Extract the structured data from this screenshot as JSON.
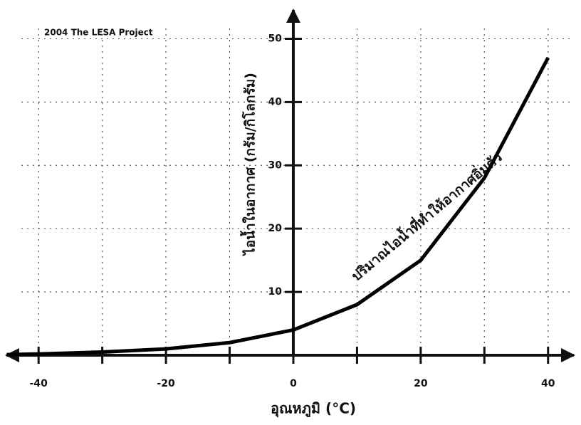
{
  "chart_data": {
    "type": "line",
    "copyright": "2004  The LESA Project",
    "y_label": "ไอน้ำในอากาศ (กรัม/กิโลกรัม)",
    "x_label": "อุณหภูมิ (°C)",
    "curve_label": "ปริมาณไอน้ำที่ทำให้อากาศอิ่มตัว",
    "x": [
      -45,
      -40,
      -30,
      -20,
      -10,
      0,
      10,
      20,
      30,
      40
    ],
    "series": [
      {
        "name": "ปริมาณไอน้ำที่ทำให้อากาศอิ่มตัว",
        "color": "#000000",
        "values": [
          0.1,
          0.2,
          0.5,
          1,
          2,
          4,
          8,
          15,
          28,
          47
        ]
      }
    ],
    "xlim": [
      -45.5,
      44.5
    ],
    "ylim": [
      0,
      55
    ],
    "xticks": [
      -40,
      -20,
      0,
      20,
      40
    ],
    "xminorticks": [
      -30,
      -10,
      10,
      30
    ],
    "yticks": [
      10,
      20,
      30,
      40,
      50
    ],
    "grid": true
  }
}
